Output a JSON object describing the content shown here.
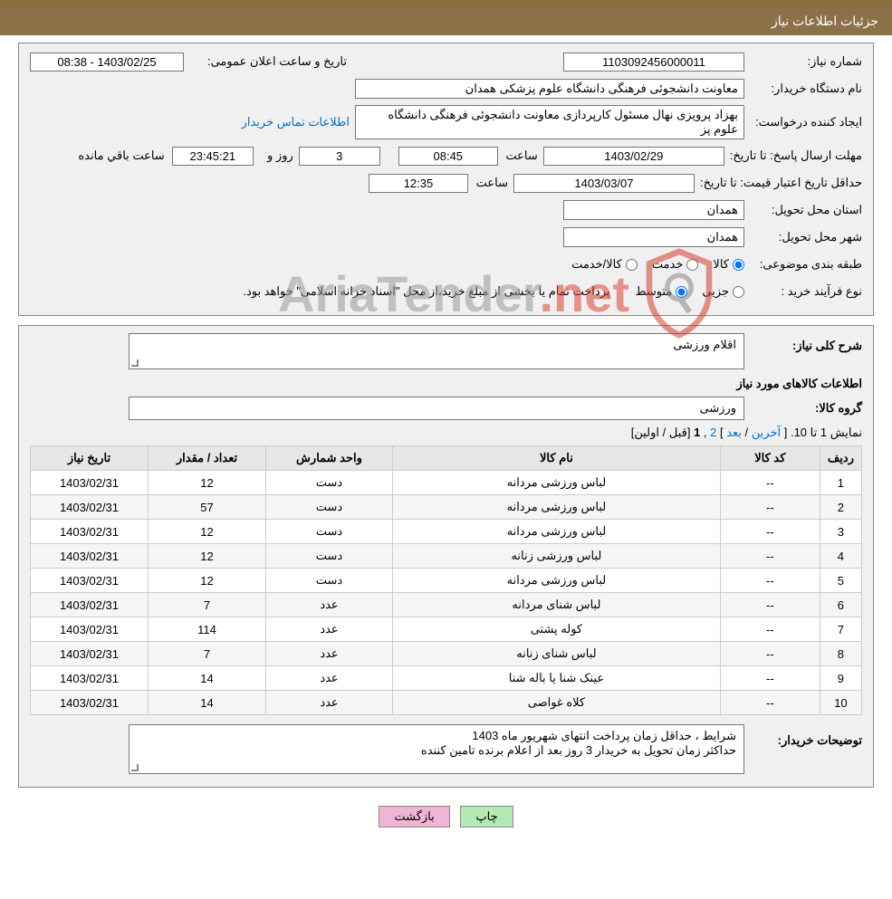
{
  "title_bar": "جزئیات اطلاعات نیاز",
  "info": {
    "need_no_lbl": "شماره نیاز:",
    "need_no": "1103092456000011",
    "pub_date_lbl": "تاریخ و ساعت اعلان عمومی:",
    "pub_date": "1403/02/25 - 08:38",
    "buyer_org_lbl": "نام دستگاه خریدار:",
    "buyer_org": "معاونت دانشجوئی فرهنگی دانشگاه علوم پزشکی همدان",
    "requester_lbl": "ایجاد کننده درخواست:",
    "requester": "بهزاد پرویزی نهال مسئول کارپردازی معاونت دانشجوئی فرهنگی دانشگاه علوم پز",
    "buyer_contact_link": "اطلاعات تماس خریدار",
    "reply_deadline_lbl": "مهلت ارسال پاسخ:",
    "until_date_lbl": "تا تاریخ:",
    "reply_date": "1403/02/29",
    "time_lbl": "ساعت",
    "reply_time": "08:45",
    "days_and_lbl": "روز و",
    "days_left": "3",
    "countdown": "23:45:21",
    "countdown_suffix": "ساعت باقي مانده",
    "price_valid_lbl": "حداقل تاریخ اعتبار قیمت:",
    "price_valid_date": "1403/03/07",
    "price_valid_time": "12:35",
    "province_lbl": "استان محل تحویل:",
    "province": "همدان",
    "city_lbl": "شهر محل تحویل:",
    "city": "همدان",
    "class_lbl": "طبقه بندی موضوعی:",
    "class_goods": "کالا",
    "class_service": "خدمت",
    "class_goods_service": "کالا/خدمت",
    "proc_type_lbl": "نوع فرآیند خرید :",
    "proc_partial": "جزیی",
    "proc_medium": "متوسط",
    "proc_note": "پرداخت تمام یا بخشی از مبلغ خرید،از محل \"اسناد خزانه اسلامی\" خواهد بود."
  },
  "desc": {
    "general_lbl": "شرح کلی نیاز:",
    "general_txt": "اقلام ورزشی",
    "items_head": "اطلاعات کالاهای مورد نیاز",
    "group_lbl": "گروه کالا:",
    "group_txt": "ورزشی",
    "buyer_note_lbl": "توضیحات خریدار:",
    "buyer_note_l1": "شرایط ، حداقل زمان پرداخت انتهای شهریور ماه 1403",
    "buyer_note_l2": "حداکثر زمان تحویل به خریدار 3 روز بعد از اعلام برنده تامین کننده"
  },
  "pager": {
    "prefix": "نمایش 1 تا 10. [ ",
    "last": "آخرین",
    "next": "بعد",
    "p2": "2",
    "p1": "1",
    "prev": "قبل",
    "first": "اولین",
    "suffix": "]"
  },
  "table": {
    "h_row": "ردیف",
    "h_code": "کد کالا",
    "h_name": "نام کالا",
    "h_unit": "واحد شمارش",
    "h_qty": "تعداد / مقدار",
    "h_date": "تاریخ نیاز",
    "rows": [
      {
        "n": "1",
        "code": "--",
        "name": "لباس ورزشی مردانه",
        "unit": "دست",
        "qty": "12",
        "date": "1403/02/31"
      },
      {
        "n": "2",
        "code": "--",
        "name": "لباس ورزشی مردانه",
        "unit": "دست",
        "qty": "57",
        "date": "1403/02/31"
      },
      {
        "n": "3",
        "code": "--",
        "name": "لباس ورزشی مردانه",
        "unit": "دست",
        "qty": "12",
        "date": "1403/02/31"
      },
      {
        "n": "4",
        "code": "--",
        "name": "لباس ورزشی زنانه",
        "unit": "دست",
        "qty": "12",
        "date": "1403/02/31"
      },
      {
        "n": "5",
        "code": "--",
        "name": "لباس ورزشی مردانه",
        "unit": "دست",
        "qty": "12",
        "date": "1403/02/31"
      },
      {
        "n": "6",
        "code": "--",
        "name": "لباس شنای مردانه",
        "unit": "عدد",
        "qty": "7",
        "date": "1403/02/31"
      },
      {
        "n": "7",
        "code": "--",
        "name": "کوله پشتی",
        "unit": "عدد",
        "qty": "114",
        "date": "1403/02/31"
      },
      {
        "n": "8",
        "code": "--",
        "name": "لباس شنای زنانه",
        "unit": "عدد",
        "qty": "7",
        "date": "1403/02/31"
      },
      {
        "n": "9",
        "code": "--",
        "name": "عینک شنا یا باله شنا",
        "unit": "عدد",
        "qty": "14",
        "date": "1403/02/31"
      },
      {
        "n": "10",
        "code": "--",
        "name": "کلاه غواصی",
        "unit": "عدد",
        "qty": "14",
        "date": "1403/02/31"
      }
    ]
  },
  "buttons": {
    "print": "چاپ",
    "back": "بازگشت"
  },
  "watermark": {
    "text": "AriaTender",
    "tld": ".net"
  },
  "colors": {
    "header_bg": "#8a7147",
    "panel_bg": "#f0f0f0",
    "link": "#0070d0",
    "btn_print": "#b4e8b4",
    "btn_back": "#f0b4d4",
    "wm_accent": "#d43f2e"
  }
}
